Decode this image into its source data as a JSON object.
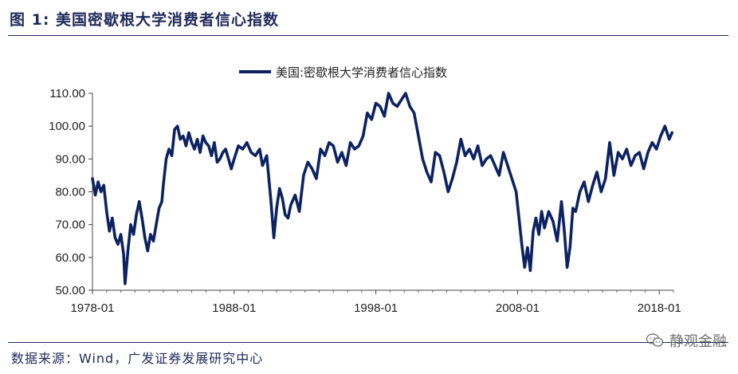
{
  "figure": {
    "title": "图 1:  美国密歇根大学消费者信心指数",
    "source": "数据来源：Wind，广发证券发展研究中心",
    "watermark": "静观金融"
  },
  "colors": {
    "line": "#0c2262",
    "rule": "#1f2a5a"
  },
  "chart_data": {
    "type": "line",
    "title": "",
    "legend_position": "top-center",
    "xlabel": "",
    "ylabel": "",
    "ylim": [
      50,
      110
    ],
    "xlim": [
      1978.0,
      2019.0
    ],
    "y_ticks": [
      50,
      60,
      70,
      80,
      90,
      100,
      110
    ],
    "y_tick_labels": [
      "50.00",
      "60.00",
      "70.00",
      "80.00",
      "90.00",
      "100.00",
      "110.00"
    ],
    "x_ticks": [
      1978.0,
      1988.0,
      1998.0,
      2008.0,
      2018.0
    ],
    "x_tick_labels": [
      "1978-01",
      "1988-01",
      "1998-01",
      "2008-01",
      "2018-01"
    ],
    "series": [
      {
        "name": "美国:密歇根大学消费者信心指数",
        "x": [
          1978.0,
          1978.2,
          1978.4,
          1978.6,
          1978.8,
          1979.0,
          1979.2,
          1979.4,
          1979.6,
          1979.8,
          1980.0,
          1980.2,
          1980.3,
          1980.5,
          1980.7,
          1980.9,
          1981.1,
          1981.3,
          1981.5,
          1981.7,
          1981.9,
          1982.1,
          1982.3,
          1982.5,
          1982.7,
          1982.9,
          1983.0,
          1983.2,
          1983.4,
          1983.6,
          1983.8,
          1984.0,
          1984.2,
          1984.4,
          1984.6,
          1984.8,
          1985.0,
          1985.2,
          1985.4,
          1985.6,
          1985.8,
          1986.0,
          1986.2,
          1986.4,
          1986.6,
          1986.8,
          1987.0,
          1987.2,
          1987.4,
          1987.6,
          1987.8,
          1988.0,
          1988.3,
          1988.6,
          1988.9,
          1989.2,
          1989.5,
          1989.8,
          1990.0,
          1990.3,
          1990.6,
          1990.8,
          1991.0,
          1991.2,
          1991.4,
          1991.6,
          1991.8,
          1992.0,
          1992.3,
          1992.6,
          1992.9,
          1993.2,
          1993.5,
          1993.8,
          1994.1,
          1994.4,
          1994.7,
          1995.0,
          1995.3,
          1995.6,
          1995.9,
          1996.2,
          1996.5,
          1996.8,
          1997.1,
          1997.4,
          1997.7,
          1998.0,
          1998.3,
          1998.6,
          1998.9,
          1999.2,
          1999.5,
          1999.8,
          2000.1,
          2000.4,
          2000.7,
          2001.0,
          2001.3,
          2001.6,
          2001.9,
          2002.2,
          2002.5,
          2002.8,
          2003.1,
          2003.4,
          2003.7,
          2004.0,
          2004.3,
          2004.6,
          2004.9,
          2005.2,
          2005.5,
          2005.8,
          2006.1,
          2006.4,
          2006.7,
          2007.0,
          2007.3,
          2007.6,
          2007.9,
          2008.1,
          2008.3,
          2008.5,
          2008.7,
          2008.9,
          2009.1,
          2009.3,
          2009.5,
          2009.7,
          2009.9,
          2010.2,
          2010.5,
          2010.8,
          2011.1,
          2011.3,
          2011.5,
          2011.7,
          2011.9,
          2012.1,
          2012.4,
          2012.7,
          2013.0,
          2013.3,
          2013.6,
          2013.9,
          2014.2,
          2014.5,
          2014.8,
          2015.1,
          2015.4,
          2015.7,
          2016.0,
          2016.3,
          2016.6,
          2016.9,
          2017.2,
          2017.5,
          2017.8,
          2018.1,
          2018.4,
          2018.7,
          2018.9
        ],
        "values": [
          84,
          79,
          83,
          80,
          82,
          74,
          68,
          72,
          66,
          64,
          67,
          61,
          52,
          62,
          70,
          67,
          73,
          77,
          72,
          66,
          62,
          67,
          65,
          70,
          75,
          77,
          82,
          90,
          93,
          91,
          99,
          100,
          96,
          97,
          94,
          98,
          95,
          93,
          96,
          92,
          97,
          95,
          94,
          91,
          95,
          89,
          90,
          92,
          93,
          90,
          87,
          90,
          94,
          93,
          95,
          92,
          91,
          93,
          88,
          91,
          77,
          66,
          75,
          81,
          78,
          73,
          72,
          76,
          79,
          74,
          85,
          89,
          87,
          84,
          93,
          91,
          95,
          94,
          89,
          92,
          88,
          95,
          93,
          94,
          97,
          104,
          102,
          107,
          106,
          103,
          110,
          107,
          106,
          108,
          110,
          106,
          104,
          97,
          90,
          86,
          83,
          92,
          91,
          86,
          80,
          84,
          89,
          96,
          91,
          93,
          90,
          94,
          88,
          90,
          91,
          88,
          85,
          92,
          88,
          84,
          80,
          72,
          64,
          57,
          63,
          56,
          68,
          72,
          67,
          74,
          69,
          74,
          71,
          65,
          77,
          68,
          57,
          63,
          75,
          74,
          80,
          83,
          77,
          82,
          86,
          80,
          84,
          95,
          85,
          92,
          90,
          93,
          88,
          91,
          92,
          87,
          92,
          95,
          93,
          97,
          100,
          96,
          98
        ]
      }
    ]
  }
}
